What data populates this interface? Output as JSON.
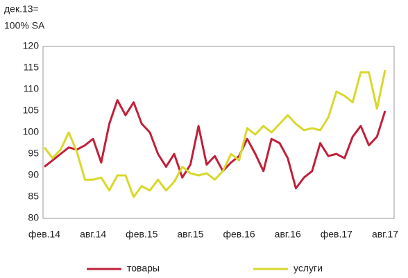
{
  "chart_data": {
    "type": "line",
    "y_label": [
      "дек.13=",
      "100% SA"
    ],
    "categories": [
      "фев.14",
      null,
      null,
      null,
      null,
      null,
      "авг.14",
      null,
      null,
      null,
      null,
      null,
      "фев.15",
      null,
      null,
      null,
      null,
      null,
      "авг.15",
      null,
      null,
      null,
      null,
      null,
      "фев.16",
      null,
      null,
      null,
      null,
      null,
      "авг.16",
      null,
      null,
      null,
      null,
      null,
      "фев.17",
      null,
      null,
      null,
      null,
      null,
      "авг.17"
    ],
    "series": [
      {
        "name": "товары",
        "color": "#c0203a",
        "values": [
          92,
          93.5,
          95,
          96.5,
          96,
          97,
          98.5,
          93,
          102,
          107.5,
          104,
          107,
          102,
          100,
          95,
          92,
          95,
          89.5,
          92.5,
          101.5,
          92.5,
          94.5,
          91,
          93,
          94.5,
          98.5,
          95,
          91,
          98.5,
          97.5,
          94,
          87,
          89.5,
          91,
          97.5,
          94.5,
          95,
          94,
          99,
          101.5,
          97,
          99,
          105
        ]
      },
      {
        "name": "услуги",
        "color": "#d8d82c",
        "values": [
          96.5,
          94,
          96,
          100,
          95.5,
          89,
          89,
          89.5,
          86.5,
          90,
          90,
          85,
          87.5,
          86.5,
          89,
          86.5,
          88.5,
          92,
          90.5,
          90,
          90.5,
          89,
          91,
          95,
          93.5,
          101,
          99.5,
          101.5,
          100,
          102,
          104,
          102,
          100.5,
          101,
          100.5,
          103.5,
          109.5,
          108.5,
          107,
          114,
          114,
          105.5,
          114.5
        ]
      }
    ],
    "ylim": [
      80,
      120
    ],
    "yticks": [
      80,
      85,
      90,
      95,
      100,
      105,
      110,
      115,
      120
    ],
    "grid": false
  }
}
